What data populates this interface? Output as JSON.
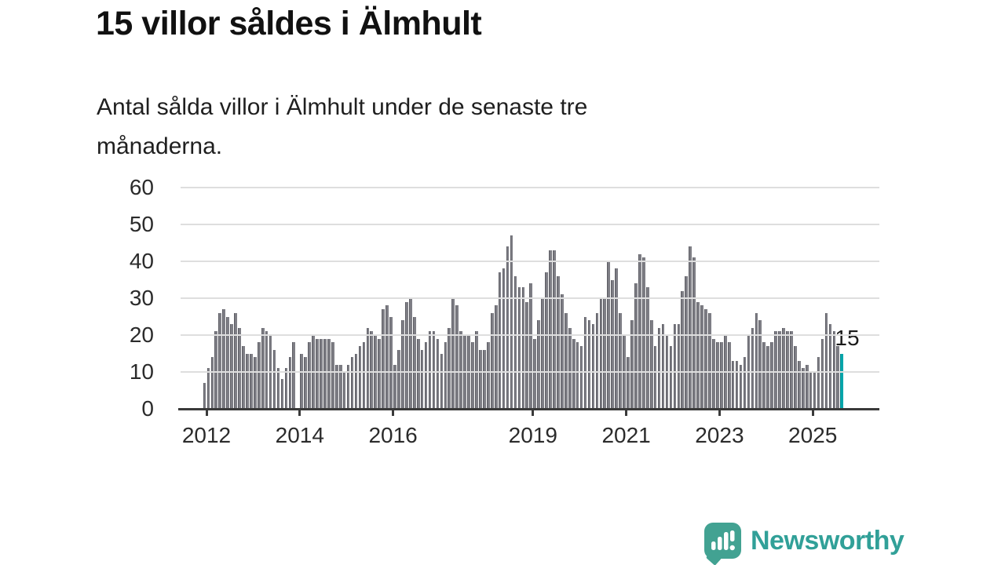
{
  "title": "15 villor såldes i Älmhult",
  "subtitle": "Antal sålda villor i Älmhult under de senaste tre månaderna.",
  "subtitle_lines": {
    "0": "Antal sålda villor i Älmhult under de senaste tre",
    "1": "månaderna."
  },
  "annotation": {
    "label": "15"
  },
  "branding": {
    "name": "Newsworthy",
    "icon": "speech-bubble-bar-chart-icon"
  },
  "colors": {
    "bar": "#7e7e85",
    "highlight_bar": "#00a6ab",
    "gridline": "#dedede",
    "axis": "#3a3a3a",
    "text": "#1f1f1f",
    "brand_teal": "#42a292"
  },
  "chart_data": {
    "type": "bar",
    "title": "15 villor såldes i Älmhult",
    "subtitle": "Antal sålda villor i Älmhult under de senaste tre månaderna.",
    "unit": "antal sålda villor (rullande 3 månader)",
    "frequency": "monthly",
    "x_start": "2012-01",
    "x_end": "2025-09",
    "ylim": [
      0,
      60
    ],
    "y_ticks": [
      0,
      10,
      20,
      30,
      40,
      50,
      60
    ],
    "x_tick_years": [
      2012,
      2014,
      2016,
      2019,
      2021,
      2023,
      2025
    ],
    "grid": "horizontal",
    "legend": "none",
    "highlight_last": true,
    "last_value_label": "15",
    "values": [
      7,
      11,
      14,
      21,
      26,
      27,
      25,
      23,
      26,
      22,
      17,
      15,
      15,
      14,
      18,
      22,
      21,
      20,
      16,
      11,
      8,
      11,
      14,
      18,
      0,
      15,
      14,
      18,
      20,
      19,
      19,
      19,
      19,
      18,
      12,
      12,
      10,
      12,
      14,
      15,
      17,
      18,
      22,
      21,
      20,
      19,
      27,
      28,
      25,
      12,
      16,
      24,
      29,
      30,
      25,
      19,
      16,
      18,
      21,
      21,
      19,
      15,
      18,
      22,
      30,
      28,
      21,
      20,
      20,
      18,
      21,
      16,
      16,
      18,
      26,
      28,
      37,
      38,
      44,
      47,
      36,
      33,
      33,
      29,
      34,
      19,
      24,
      30,
      37,
      43,
      43,
      36,
      31,
      26,
      22,
      19,
      18,
      17,
      25,
      24,
      23,
      26,
      30,
      30,
      40,
      35,
      38,
      26,
      20,
      14,
      24,
      34,
      42,
      41,
      33,
      24,
      17,
      22,
      23,
      20,
      17,
      23,
      23,
      32,
      36,
      44,
      41,
      29,
      28,
      27,
      26,
      19,
      18,
      18,
      20,
      18,
      13,
      13,
      12,
      14,
      20,
      22,
      26,
      24,
      18,
      17,
      18,
      21,
      21,
      22,
      21,
      21,
      17,
      13,
      11,
      12,
      10,
      10,
      14,
      19,
      26,
      23,
      21,
      17,
      15
    ]
  }
}
